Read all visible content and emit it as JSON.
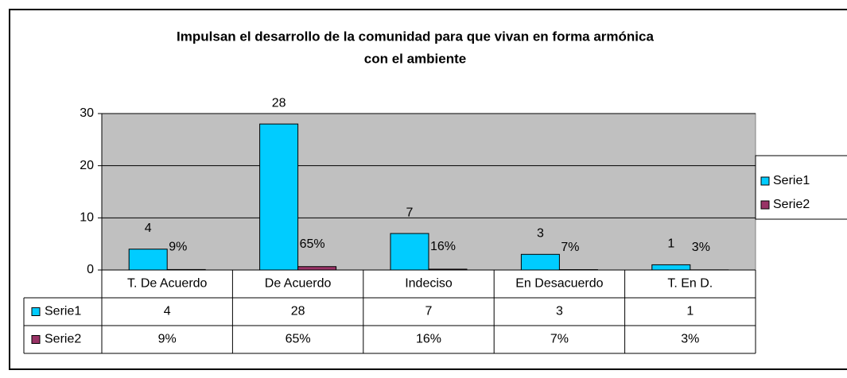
{
  "chart_data": {
    "type": "bar",
    "title": [
      "Impulsan el desarrollo de la comunidad para que vivan en forma armónica",
      "con el ambiente"
    ],
    "categories": [
      "T. De Acuerdo",
      "De Acuerdo",
      "Indeciso",
      "En Desacuerdo",
      "T. En D."
    ],
    "series": [
      {
        "name": "Serie1",
        "color": "#00ccff",
        "values": [
          4,
          28,
          7,
          3,
          1
        ]
      },
      {
        "name": "Serie2",
        "color": "#993366",
        "values": [
          0.09,
          0.65,
          0.16,
          0.07,
          0.03
        ],
        "value_labels": [
          "9%",
          "65%",
          "16%",
          "7%",
          "3%"
        ]
      }
    ],
    "ylim": [
      0,
      30
    ],
    "yticks": [
      0,
      10,
      20,
      30
    ],
    "grid": true,
    "legend": "right",
    "data_table": true
  }
}
